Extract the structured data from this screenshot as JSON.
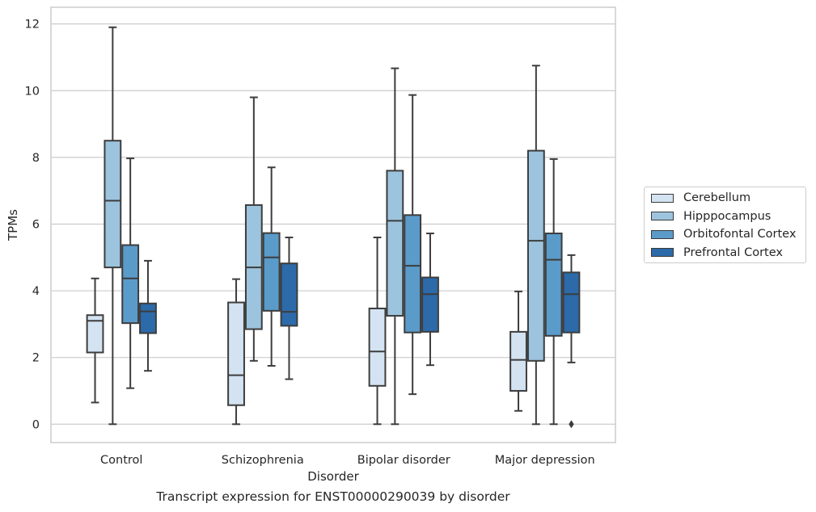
{
  "chart_data": {
    "type": "box",
    "title": "Transcript expression for ENST00000290039 by disorder",
    "xlabel": "Disorder",
    "ylabel": "TPMs",
    "ylim": [
      -0.55,
      12.5
    ],
    "yticks": [
      0,
      2,
      4,
      6,
      8,
      10,
      12
    ],
    "grid": true,
    "legend_position": "right",
    "categories": [
      "Control",
      "Schizophrenia",
      "Bipolar disorder",
      "Major depression"
    ],
    "series": [
      {
        "name": "Cerebellum",
        "color": "#d4e3f1",
        "boxes": [
          {
            "whislo": 0.65,
            "q1": 2.15,
            "med": 3.1,
            "q3": 3.27,
            "whishi": 4.37,
            "fliers": []
          },
          {
            "whislo": 0.0,
            "q1": 0.57,
            "med": 1.47,
            "q3": 3.65,
            "whishi": 4.35,
            "fliers": []
          },
          {
            "whislo": 0.0,
            "q1": 1.15,
            "med": 2.18,
            "q3": 3.47,
            "whishi": 5.6,
            "fliers": []
          },
          {
            "whislo": 0.4,
            "q1": 1.0,
            "med": 1.93,
            "q3": 2.77,
            "whishi": 3.98,
            "fliers": []
          }
        ]
      },
      {
        "name": "Hipppocampus",
        "color": "#9dc4de",
        "boxes": [
          {
            "whislo": 0.0,
            "q1": 4.7,
            "med": 6.7,
            "q3": 8.5,
            "whishi": 11.9,
            "fliers": []
          },
          {
            "whislo": 1.9,
            "q1": 2.85,
            "med": 4.7,
            "q3": 6.57,
            "whishi": 9.8,
            "fliers": []
          },
          {
            "whislo": 0.0,
            "q1": 3.25,
            "med": 6.1,
            "q3": 7.6,
            "whishi": 10.67,
            "fliers": []
          },
          {
            "whislo": 0.0,
            "q1": 1.9,
            "med": 5.5,
            "q3": 8.2,
            "whishi": 10.75,
            "fliers": []
          }
        ]
      },
      {
        "name": "Orbitofontal Cortex",
        "color": "#5a9bc9",
        "boxes": [
          {
            "whislo": 1.08,
            "q1": 3.03,
            "med": 4.37,
            "q3": 5.37,
            "whishi": 7.97,
            "fliers": []
          },
          {
            "whislo": 1.75,
            "q1": 3.4,
            "med": 5.0,
            "q3": 5.73,
            "whishi": 7.7,
            "fliers": []
          },
          {
            "whislo": 0.9,
            "q1": 2.75,
            "med": 4.75,
            "q3": 6.27,
            "whishi": 9.87,
            "fliers": []
          },
          {
            "whislo": 0.0,
            "q1": 2.65,
            "med": 4.93,
            "q3": 5.72,
            "whishi": 7.95,
            "fliers": []
          }
        ]
      },
      {
        "name": "Prefrontal Cortex",
        "color": "#2c6aa9",
        "boxes": [
          {
            "whislo": 1.6,
            "q1": 2.73,
            "med": 3.38,
            "q3": 3.62,
            "whishi": 4.9,
            "fliers": []
          },
          {
            "whislo": 1.35,
            "q1": 2.95,
            "med": 3.37,
            "q3": 4.82,
            "whishi": 5.6,
            "fliers": []
          },
          {
            "whislo": 1.77,
            "q1": 2.77,
            "med": 3.9,
            "q3": 4.4,
            "whishi": 5.72,
            "fliers": []
          },
          {
            "whislo": 1.85,
            "q1": 2.75,
            "med": 3.9,
            "q3": 4.55,
            "whishi": 5.07,
            "fliers": [
              0.0
            ]
          }
        ]
      }
    ]
  }
}
